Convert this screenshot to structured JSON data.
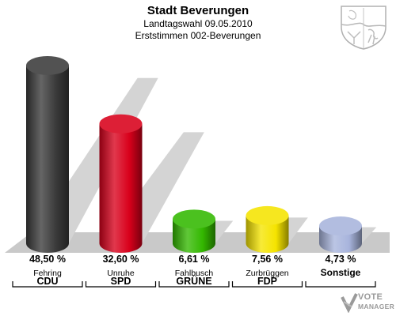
{
  "chart_data": {
    "type": "bar",
    "title": "Stadt Beverungen",
    "subtitle": "Landtagswahl 09.05.2010",
    "subtitle2": "Erststimmen 002-Beverungen",
    "categories": [
      "CDU",
      "SPD",
      "GRÜNE",
      "FDP",
      "Sonstige"
    ],
    "candidates": [
      "Fehring",
      "Unruhe",
      "Fahlbusch",
      "Zurbrüggen",
      ""
    ],
    "values": [
      48.5,
      32.6,
      6.61,
      7.56,
      4.73
    ],
    "value_labels": [
      "48,50 %",
      "32,60 %",
      "6,61 %",
      "7,56 %",
      "4,73 %"
    ],
    "colors": [
      "#3a3a3a",
      "#d8001b",
      "#33b800",
      "#f5e400",
      "#a8b4dc"
    ],
    "ylim": [
      0,
      50
    ],
    "grid": false,
    "legend": "none"
  },
  "watermark": {
    "line1": "VOTE",
    "line2": "MANAGER"
  },
  "icons": {
    "crest": "coat-of-arms-icon",
    "logo": "vote-manager-logo-icon"
  }
}
